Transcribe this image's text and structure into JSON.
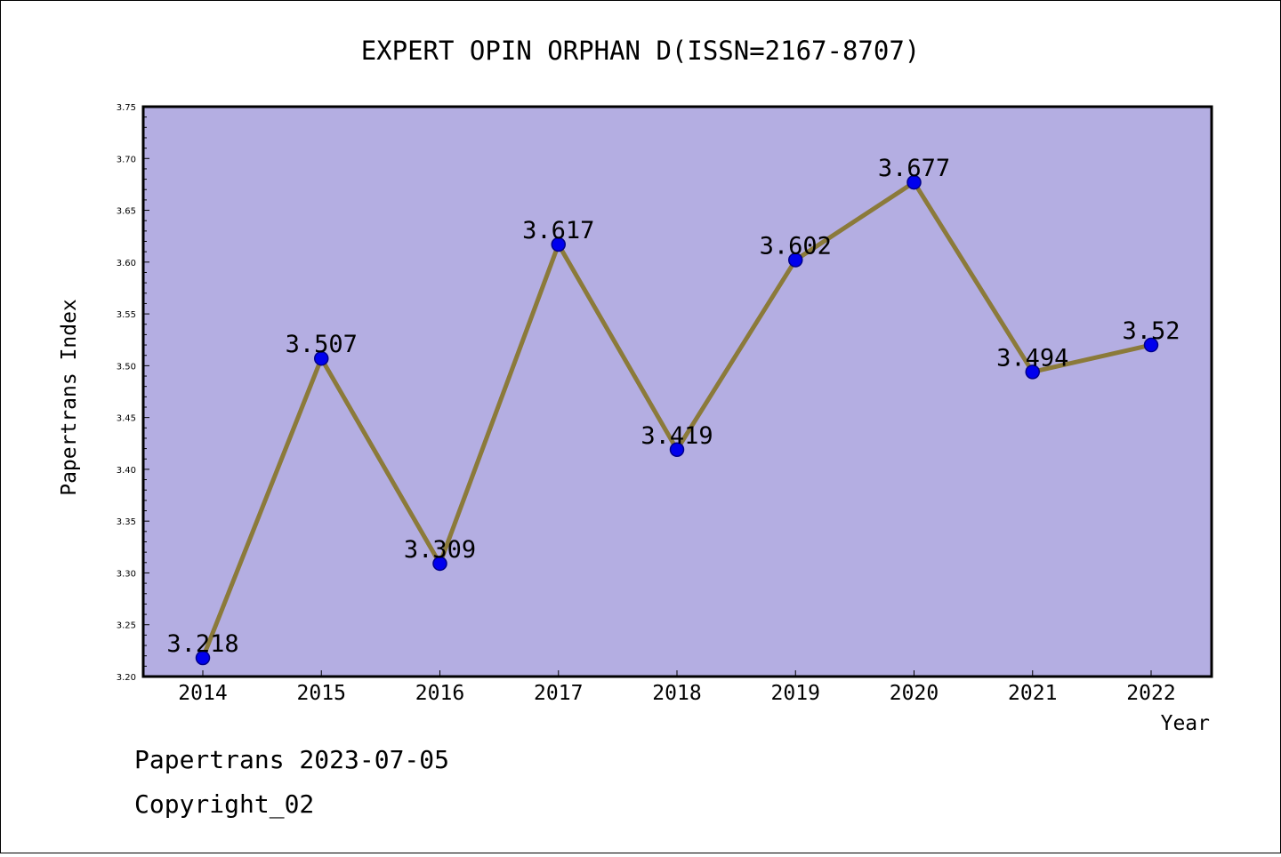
{
  "chart_data": {
    "type": "line",
    "title": "EXPERT OPIN ORPHAN D(ISSN=2167-8707)",
    "xlabel": "Year",
    "ylabel": "Papertrans Index",
    "categories": [
      "2014",
      "2015",
      "2016",
      "2017",
      "2018",
      "2019",
      "2020",
      "2021",
      "2022"
    ],
    "series": [
      {
        "values": [
          3.218,
          3.507,
          3.309,
          3.617,
          3.419,
          3.602,
          3.677,
          3.494,
          3.52
        ]
      }
    ],
    "data_labels": [
      "3.218",
      "3.507",
      "3.309",
      "3.617",
      "3.419",
      "3.602",
      "3.677",
      "3.494",
      "3.52"
    ],
    "ylim": [
      3.2,
      3.75
    ],
    "yticks": [
      "3.20",
      "3.25",
      "3.30",
      "3.35",
      "3.40",
      "3.45",
      "3.50",
      "3.55",
      "3.60",
      "3.65",
      "3.70",
      "3.75"
    ],
    "grid": false,
    "colors": {
      "plot_background": "#b4aee2",
      "line": "#8b7a3a",
      "marker": "#0000ee",
      "marker_edge": "#00008b"
    }
  },
  "footer": {
    "line1": "Papertrans 2023-07-05",
    "line2": "Copyright_02"
  }
}
